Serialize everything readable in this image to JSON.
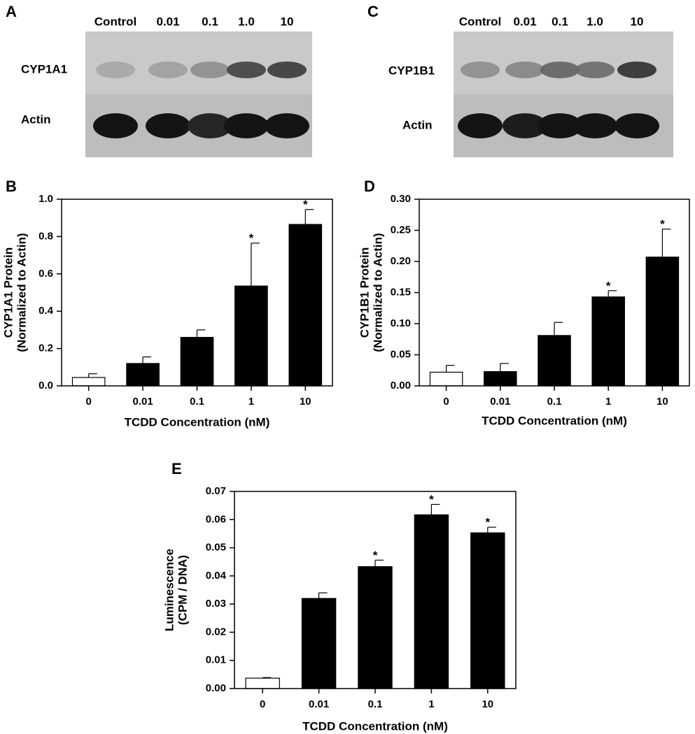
{
  "blots": [
    {
      "panel": "A",
      "lanes": [
        "Control",
        "0.01",
        "0.1",
        "1.0",
        "10"
      ],
      "rows": [
        "CYP1A1",
        "Actin"
      ]
    },
    {
      "panel": "C",
      "lanes": [
        "Control",
        "0.01",
        "0.1",
        "1.0",
        "10"
      ],
      "rows": [
        "CYP1B1",
        "Actin"
      ]
    }
  ],
  "chart_data": [
    {
      "type": "bar",
      "panel": "B",
      "categories": [
        "0",
        "0.01",
        "0.1",
        "1",
        "10"
      ],
      "values": [
        0.045,
        0.12,
        0.26,
        0.535,
        0.865
      ],
      "errors": [
        0.02,
        0.035,
        0.04,
        0.23,
        0.08
      ],
      "annotations": [
        null,
        null,
        null,
        "*",
        "*"
      ],
      "colors": [
        "#ffffff",
        "#000000",
        "#000000",
        "#000000",
        "#000000"
      ],
      "xlabel": "TCDD Concentration (nM)",
      "ylabel": [
        "CYP1A1 Protein",
        "(Normalized to Actin)"
      ],
      "ylim": [
        0,
        1
      ],
      "yticks": [
        {
          "value": 0,
          "label": "0.0"
        },
        0.2,
        0.4,
        0.6,
        0.8,
        {
          "value": 1,
          "label": "1.0"
        }
      ]
    },
    {
      "type": "bar",
      "panel": "D",
      "categories": [
        "0",
        "0.01",
        "0.1",
        "1",
        "10"
      ],
      "values": [
        0.022,
        0.023,
        0.081,
        0.143,
        0.207
      ],
      "errors": [
        0.011,
        0.013,
        0.021,
        0.01,
        0.045
      ],
      "annotations": [
        null,
        null,
        null,
        "*",
        "*"
      ],
      "colors": [
        "#ffffff",
        "#000000",
        "#000000",
        "#000000",
        "#000000"
      ],
      "xlabel": "TCDD Concentration (nM)",
      "ylabel": [
        "CYP1B1 Protein",
        "(Normalized to Actin)"
      ],
      "ylim": [
        0,
        0.3
      ],
      "yticks": [
        {
          "value": 0,
          "label": "0.00"
        },
        0.05,
        {
          "value": 0.1,
          "label": "0.10"
        },
        0.15,
        {
          "value": 0.2,
          "label": "0.20"
        },
        0.25,
        {
          "value": 0.3,
          "label": "0.30"
        }
      ]
    },
    {
      "type": "bar",
      "panel": "E",
      "categories": [
        "0",
        "0.01",
        "0.1",
        "1",
        "10"
      ],
      "values": [
        0.0037,
        0.032,
        0.0433,
        0.0617,
        0.0553
      ],
      "errors": [
        0.0002,
        0.002,
        0.0023,
        0.0037,
        0.002
      ],
      "annotations": [
        null,
        null,
        "*",
        "*",
        "*"
      ],
      "colors": [
        "#ffffff",
        "#000000",
        "#000000",
        "#000000",
        "#000000"
      ],
      "xlabel": "TCDD Concentration (nM)",
      "ylabel": [
        "Luminescence",
        "(CPM / DNA)"
      ],
      "ylim": [
        0,
        0.07
      ],
      "yticks": [
        {
          "value": 0,
          "label": "0.00"
        },
        0.01,
        0.02,
        0.03,
        0.04,
        0.05,
        0.06,
        0.07
      ]
    }
  ]
}
